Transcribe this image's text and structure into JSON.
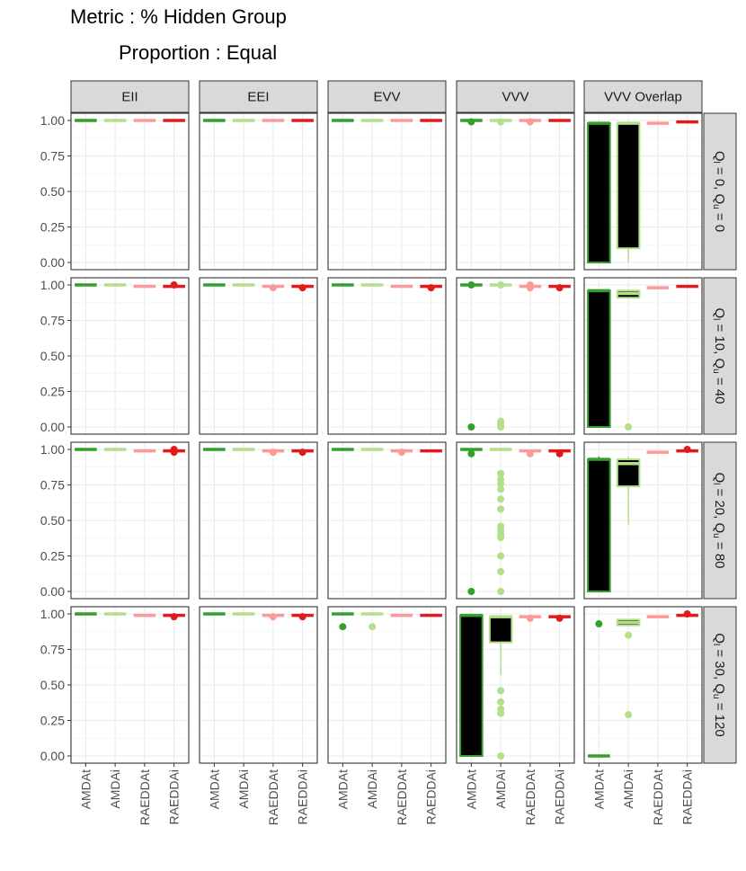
{
  "titles": {
    "line1": "Metric : % Hidden Group",
    "line2": "Proportion : Equal"
  },
  "chart_data": {
    "type": "box",
    "columns": [
      "EII",
      "EEI",
      "EVV",
      "VVV",
      "VVV Overlap"
    ],
    "rows": [
      {
        "label": "Q_l = 0, Q_u = 0",
        "l": "0",
        "u": "0"
      },
      {
        "label": "Q_l = 10, Q_u = 40",
        "l": "10",
        "u": "40"
      },
      {
        "label": "Q_l = 20, Q_u = 80",
        "l": "20",
        "u": "80"
      },
      {
        "label": "Q_l = 30, Q_u = 120",
        "l": "30",
        "u": "120"
      }
    ],
    "categories": [
      "AMDAt",
      "AMDAi",
      "RAEDDAt",
      "RAEDDAi"
    ],
    "colors": {
      "AMDAt": "#33a02c",
      "AMDAi": "#b2df8a",
      "RAEDDAt": "#fb9a99",
      "RAEDDAi": "#e31a1c"
    },
    "ylim": [
      0,
      1
    ],
    "yticks": [
      0,
      0.25,
      0.5,
      0.75,
      1
    ],
    "ytick_labels": [
      "0.00",
      "0.25",
      "0.50",
      "0.75",
      "1.00"
    ],
    "grid": true,
    "panels": [
      {
        "row": 0,
        "col": 0,
        "boxes": [
          {
            "min": 1,
            "q1": 1,
            "med": 1,
            "q3": 1,
            "max": 1,
            "out": []
          },
          {
            "min": 1,
            "q1": 1,
            "med": 1,
            "q3": 1,
            "max": 1,
            "out": []
          },
          {
            "min": 1,
            "q1": 1,
            "med": 1,
            "q3": 1,
            "max": 1,
            "out": []
          },
          {
            "min": 1,
            "q1": 1,
            "med": 1,
            "q3": 1,
            "max": 1,
            "out": []
          }
        ]
      },
      {
        "row": 0,
        "col": 1,
        "boxes": [
          {
            "min": 1,
            "q1": 1,
            "med": 1,
            "q3": 1,
            "max": 1,
            "out": []
          },
          {
            "min": 1,
            "q1": 1,
            "med": 1,
            "q3": 1,
            "max": 1,
            "out": []
          },
          {
            "min": 1,
            "q1": 1,
            "med": 1,
            "q3": 1,
            "max": 1,
            "out": []
          },
          {
            "min": 1,
            "q1": 1,
            "med": 1,
            "q3": 1,
            "max": 1,
            "out": []
          }
        ]
      },
      {
        "row": 0,
        "col": 2,
        "boxes": [
          {
            "min": 1,
            "q1": 1,
            "med": 1,
            "q3": 1,
            "max": 1,
            "out": []
          },
          {
            "min": 1,
            "q1": 1,
            "med": 1,
            "q3": 1,
            "max": 1,
            "out": []
          },
          {
            "min": 1,
            "q1": 1,
            "med": 1,
            "q3": 1,
            "max": 1,
            "out": []
          },
          {
            "min": 1,
            "q1": 1,
            "med": 1,
            "q3": 1,
            "max": 1,
            "out": []
          }
        ]
      },
      {
        "row": 0,
        "col": 3,
        "boxes": [
          {
            "min": 1,
            "q1": 1,
            "med": 1,
            "q3": 1,
            "max": 1,
            "out": [
              0.99
            ]
          },
          {
            "min": 1,
            "q1": 1,
            "med": 1,
            "q3": 1,
            "max": 1,
            "out": [
              0.99
            ]
          },
          {
            "min": 1,
            "q1": 1,
            "med": 1,
            "q3": 1,
            "max": 1,
            "out": [
              0.99
            ]
          },
          {
            "min": 1,
            "q1": 1,
            "med": 1,
            "q3": 1,
            "max": 1,
            "out": []
          }
        ]
      },
      {
        "row": 0,
        "col": 4,
        "boxes": [
          {
            "min": 0,
            "q1": 0,
            "med": 0.98,
            "q3": 0.98,
            "max": 0.98,
            "out": []
          },
          {
            "min": 0,
            "q1": 0.1,
            "med": 0.98,
            "q3": 0.98,
            "max": 0.98,
            "out": []
          },
          {
            "min": 0.97,
            "q1": 0.97,
            "med": 0.98,
            "q3": 0.98,
            "max": 0.99,
            "out": []
          },
          {
            "min": 0.99,
            "q1": 0.99,
            "med": 0.99,
            "q3": 0.99,
            "max": 0.99,
            "out": []
          }
        ]
      },
      {
        "row": 1,
        "col": 0,
        "boxes": [
          {
            "min": 1,
            "q1": 1,
            "med": 1,
            "q3": 1,
            "max": 1,
            "out": []
          },
          {
            "min": 1,
            "q1": 1,
            "med": 1,
            "q3": 1,
            "max": 1,
            "out": []
          },
          {
            "min": 0.99,
            "q1": 0.99,
            "med": 0.99,
            "q3": 0.99,
            "max": 0.99,
            "out": []
          },
          {
            "min": 0.99,
            "q1": 0.99,
            "med": 0.99,
            "q3": 0.99,
            "max": 0.99,
            "out": [
              1.0
            ]
          }
        ]
      },
      {
        "row": 1,
        "col": 1,
        "boxes": [
          {
            "min": 1,
            "q1": 1,
            "med": 1,
            "q3": 1,
            "max": 1,
            "out": []
          },
          {
            "min": 1,
            "q1": 1,
            "med": 1,
            "q3": 1,
            "max": 1,
            "out": []
          },
          {
            "min": 0.99,
            "q1": 0.99,
            "med": 0.99,
            "q3": 0.99,
            "max": 0.99,
            "out": [
              0.98
            ]
          },
          {
            "min": 0.99,
            "q1": 0.99,
            "med": 0.99,
            "q3": 0.99,
            "max": 0.99,
            "out": [
              0.98
            ]
          }
        ]
      },
      {
        "row": 1,
        "col": 2,
        "boxes": [
          {
            "min": 1,
            "q1": 1,
            "med": 1,
            "q3": 1,
            "max": 1,
            "out": []
          },
          {
            "min": 1,
            "q1": 1,
            "med": 1,
            "q3": 1,
            "max": 1,
            "out": []
          },
          {
            "min": 0.99,
            "q1": 0.99,
            "med": 0.99,
            "q3": 0.99,
            "max": 0.99,
            "out": []
          },
          {
            "min": 0.99,
            "q1": 0.99,
            "med": 0.99,
            "q3": 0.99,
            "max": 0.99,
            "out": [
              0.98
            ]
          }
        ]
      },
      {
        "row": 1,
        "col": 3,
        "boxes": [
          {
            "min": 1,
            "q1": 1,
            "med": 1,
            "q3": 1,
            "max": 1,
            "out": [
              1.0,
              0.0
            ]
          },
          {
            "min": 1,
            "q1": 1,
            "med": 1,
            "q3": 1,
            "max": 1,
            "out": [
              1.0,
              0.04,
              0.02,
              0.0
            ]
          },
          {
            "min": 0.99,
            "q1": 0.99,
            "med": 0.99,
            "q3": 0.99,
            "max": 0.99,
            "out": [
              1.0,
              0.98
            ]
          },
          {
            "min": 0.99,
            "q1": 0.99,
            "med": 0.99,
            "q3": 0.99,
            "max": 0.99,
            "out": [
              0.98
            ]
          }
        ]
      },
      {
        "row": 1,
        "col": 4,
        "boxes": [
          {
            "min": 0,
            "q1": 0,
            "med": 0.96,
            "q3": 0.96,
            "max": 0.96,
            "out": []
          },
          {
            "min": 0.91,
            "q1": 0.91,
            "med": 0.94,
            "q3": 0.96,
            "max": 0.97,
            "out": [
              0.0
            ]
          },
          {
            "min": 0.98,
            "q1": 0.98,
            "med": 0.98,
            "q3": 0.98,
            "max": 0.98,
            "out": []
          },
          {
            "min": 0.99,
            "q1": 0.99,
            "med": 0.99,
            "q3": 0.99,
            "max": 0.99,
            "out": []
          }
        ]
      },
      {
        "row": 2,
        "col": 0,
        "boxes": [
          {
            "min": 1,
            "q1": 1,
            "med": 1,
            "q3": 1,
            "max": 1,
            "out": []
          },
          {
            "min": 1,
            "q1": 1,
            "med": 1,
            "q3": 1,
            "max": 1,
            "out": []
          },
          {
            "min": 0.99,
            "q1": 0.99,
            "med": 0.99,
            "q3": 0.99,
            "max": 0.99,
            "out": []
          },
          {
            "min": 0.99,
            "q1": 0.99,
            "med": 0.99,
            "q3": 0.99,
            "max": 0.99,
            "out": [
              1.0,
              0.98
            ]
          }
        ]
      },
      {
        "row": 2,
        "col": 1,
        "boxes": [
          {
            "min": 1,
            "q1": 1,
            "med": 1,
            "q3": 1,
            "max": 1,
            "out": []
          },
          {
            "min": 1,
            "q1": 1,
            "med": 1,
            "q3": 1,
            "max": 1,
            "out": []
          },
          {
            "min": 0.99,
            "q1": 0.99,
            "med": 0.99,
            "q3": 0.99,
            "max": 0.99,
            "out": [
              0.98
            ]
          },
          {
            "min": 0.99,
            "q1": 0.99,
            "med": 0.99,
            "q3": 0.99,
            "max": 0.99,
            "out": [
              0.98
            ]
          }
        ]
      },
      {
        "row": 2,
        "col": 2,
        "boxes": [
          {
            "min": 1,
            "q1": 1,
            "med": 1,
            "q3": 1,
            "max": 1,
            "out": []
          },
          {
            "min": 1,
            "q1": 1,
            "med": 1,
            "q3": 1,
            "max": 1,
            "out": []
          },
          {
            "min": 0.99,
            "q1": 0.99,
            "med": 0.99,
            "q3": 0.99,
            "max": 0.99,
            "out": [
              0.98
            ]
          },
          {
            "min": 0.99,
            "q1": 0.99,
            "med": 0.99,
            "q3": 0.99,
            "max": 0.99,
            "out": []
          }
        ]
      },
      {
        "row": 2,
        "col": 3,
        "boxes": [
          {
            "min": 1,
            "q1": 1,
            "med": 1,
            "q3": 1,
            "max": 1,
            "out": [
              0.97,
              0.0
            ]
          },
          {
            "min": 1,
            "q1": 1,
            "med": 1,
            "q3": 1,
            "max": 1,
            "out": [
              0.83,
              0.79,
              0.76,
              0.72,
              0.65,
              0.58,
              0.46,
              0.43,
              0.4,
              0.38,
              0.25,
              0.14,
              0.0
            ]
          },
          {
            "min": 0.99,
            "q1": 0.99,
            "med": 0.99,
            "q3": 0.99,
            "max": 0.99,
            "out": [
              0.97
            ]
          },
          {
            "min": 0.99,
            "q1": 0.99,
            "med": 0.99,
            "q3": 0.99,
            "max": 0.99,
            "out": [
              0.97
            ]
          }
        ]
      },
      {
        "row": 2,
        "col": 4,
        "boxes": [
          {
            "min": 0,
            "q1": 0,
            "med": 0.93,
            "q3": 0.93,
            "max": 0.95,
            "out": []
          },
          {
            "min": 0.47,
            "q1": 0.74,
            "med": 0.9,
            "q3": 0.93,
            "max": 0.95,
            "out": []
          },
          {
            "min": 0.98,
            "q1": 0.98,
            "med": 0.98,
            "q3": 0.98,
            "max": 0.98,
            "out": []
          },
          {
            "min": 0.99,
            "q1": 0.99,
            "med": 0.99,
            "q3": 0.99,
            "max": 0.99,
            "out": [
              1.0
            ]
          }
        ]
      },
      {
        "row": 3,
        "col": 0,
        "boxes": [
          {
            "min": 1,
            "q1": 1,
            "med": 1,
            "q3": 1,
            "max": 1,
            "out": []
          },
          {
            "min": 1,
            "q1": 1,
            "med": 1,
            "q3": 1,
            "max": 1,
            "out": []
          },
          {
            "min": 0.99,
            "q1": 0.99,
            "med": 0.99,
            "q3": 0.99,
            "max": 0.99,
            "out": []
          },
          {
            "min": 0.99,
            "q1": 0.99,
            "med": 0.99,
            "q3": 0.99,
            "max": 0.99,
            "out": [
              0.98
            ]
          }
        ]
      },
      {
        "row": 3,
        "col": 1,
        "boxes": [
          {
            "min": 1,
            "q1": 1,
            "med": 1,
            "q3": 1,
            "max": 1,
            "out": []
          },
          {
            "min": 1,
            "q1": 1,
            "med": 1,
            "q3": 1,
            "max": 1,
            "out": []
          },
          {
            "min": 0.99,
            "q1": 0.99,
            "med": 0.99,
            "q3": 0.99,
            "max": 0.99,
            "out": [
              0.98
            ]
          },
          {
            "min": 0.99,
            "q1": 0.99,
            "med": 0.99,
            "q3": 0.99,
            "max": 0.99,
            "out": [
              0.98
            ]
          }
        ]
      },
      {
        "row": 3,
        "col": 2,
        "boxes": [
          {
            "min": 1,
            "q1": 1,
            "med": 1,
            "q3": 1,
            "max": 1,
            "out": [
              0.91
            ]
          },
          {
            "min": 1,
            "q1": 1,
            "med": 1,
            "q3": 1,
            "max": 1,
            "out": [
              0.91
            ]
          },
          {
            "min": 0.99,
            "q1": 0.99,
            "med": 0.99,
            "q3": 0.99,
            "max": 0.99,
            "out": []
          },
          {
            "min": 0.99,
            "q1": 0.99,
            "med": 0.99,
            "q3": 0.99,
            "max": 0.99,
            "out": []
          }
        ]
      },
      {
        "row": 3,
        "col": 3,
        "boxes": [
          {
            "min": 0,
            "q1": 0,
            "med": 0.99,
            "q3": 0.99,
            "max": 0.99,
            "out": []
          },
          {
            "min": 0.57,
            "q1": 0.8,
            "med": 0.98,
            "q3": 0.98,
            "max": 0.98,
            "out": [
              0.46,
              0.38,
              0.33,
              0.3,
              0.0
            ]
          },
          {
            "min": 0.98,
            "q1": 0.98,
            "med": 0.98,
            "q3": 0.98,
            "max": 0.98,
            "out": [
              0.97
            ]
          },
          {
            "min": 0.98,
            "q1": 0.98,
            "med": 0.98,
            "q3": 0.98,
            "max": 0.98,
            "out": [
              0.97
            ]
          }
        ]
      },
      {
        "row": 3,
        "col": 4,
        "boxes": [
          {
            "min": 0,
            "q1": 0,
            "med": 0,
            "q3": 0,
            "max": 0,
            "out": [
              0.93
            ]
          },
          {
            "min": 0.92,
            "q1": 0.92,
            "med": 0.94,
            "q3": 0.96,
            "max": 0.96,
            "out": [
              0.85,
              0.29
            ]
          },
          {
            "min": 0.98,
            "q1": 0.98,
            "med": 0.98,
            "q3": 0.98,
            "max": 0.98,
            "out": []
          },
          {
            "min": 0.99,
            "q1": 0.99,
            "med": 0.99,
            "q3": 0.99,
            "max": 0.99,
            "out": [
              1.0
            ]
          }
        ]
      }
    ]
  }
}
